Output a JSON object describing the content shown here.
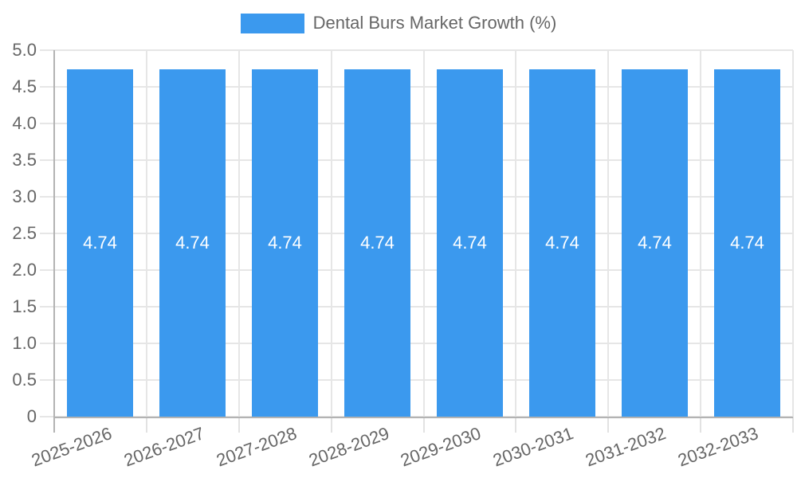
{
  "chart_data": {
    "type": "bar",
    "title": "Dental Burs Market Growth (%)",
    "categories": [
      "2025-2026",
      "2026-2027",
      "2027-2028",
      "2028-2029",
      "2029-2030",
      "2030-2031",
      "2031-2032",
      "2032-2033"
    ],
    "values": [
      4.74,
      4.74,
      4.74,
      4.74,
      4.74,
      4.74,
      4.74,
      4.74
    ],
    "value_labels": [
      "4.74",
      "4.74",
      "4.74",
      "4.74",
      "4.74",
      "4.74",
      "4.74",
      "4.74"
    ],
    "xlabel": "",
    "ylabel": "",
    "ylim": [
      0,
      5
    ],
    "ytick_step": 0.5,
    "ytick_labels": [
      "0",
      "0.5",
      "1.0",
      "1.5",
      "2.0",
      "2.5",
      "3.0",
      "3.5",
      "4.0",
      "4.5",
      "5.0"
    ],
    "grid": true,
    "legend_position": "top",
    "bar_color": "#3b99ee",
    "bar_label_color": "#ffffff"
  },
  "colors": {
    "grid": "#e6e6e6",
    "axis": "#b3b3b3",
    "tick_text": "#666666",
    "legend_text": "#666666",
    "background": "#ffffff"
  }
}
